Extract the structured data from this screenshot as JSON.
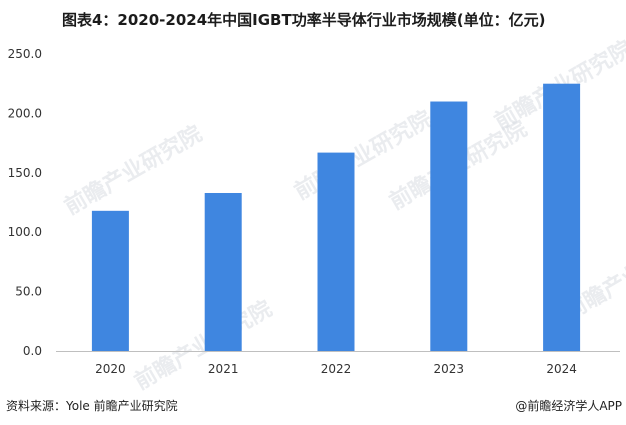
{
  "chart_data": {
    "type": "bar",
    "title": "图表4：2020-2024年中国IGBT功率半导体行业市场规模(单位：亿元)",
    "categories": [
      "2020",
      "2021",
      "2022",
      "2023",
      "2024"
    ],
    "values": [
      118,
      133,
      167,
      210,
      225
    ],
    "ylim": [
      0,
      250
    ],
    "yticks": [
      "0.0",
      "50.0",
      "100.0",
      "150.0",
      "200.0",
      "250.0"
    ],
    "ytick_values": [
      0,
      50,
      100,
      150,
      200,
      250
    ],
    "xlabel": "",
    "ylabel": "",
    "grid": false,
    "legend": "none",
    "bar_color": "#3f86e0",
    "axis_color": "#bfbfbf"
  },
  "footer": {
    "source": "资料来源：Yole 前瞻产业研究院",
    "brand": "@前瞻经济学人APP"
  },
  "watermark": {
    "text": "前瞻产业研究院"
  }
}
